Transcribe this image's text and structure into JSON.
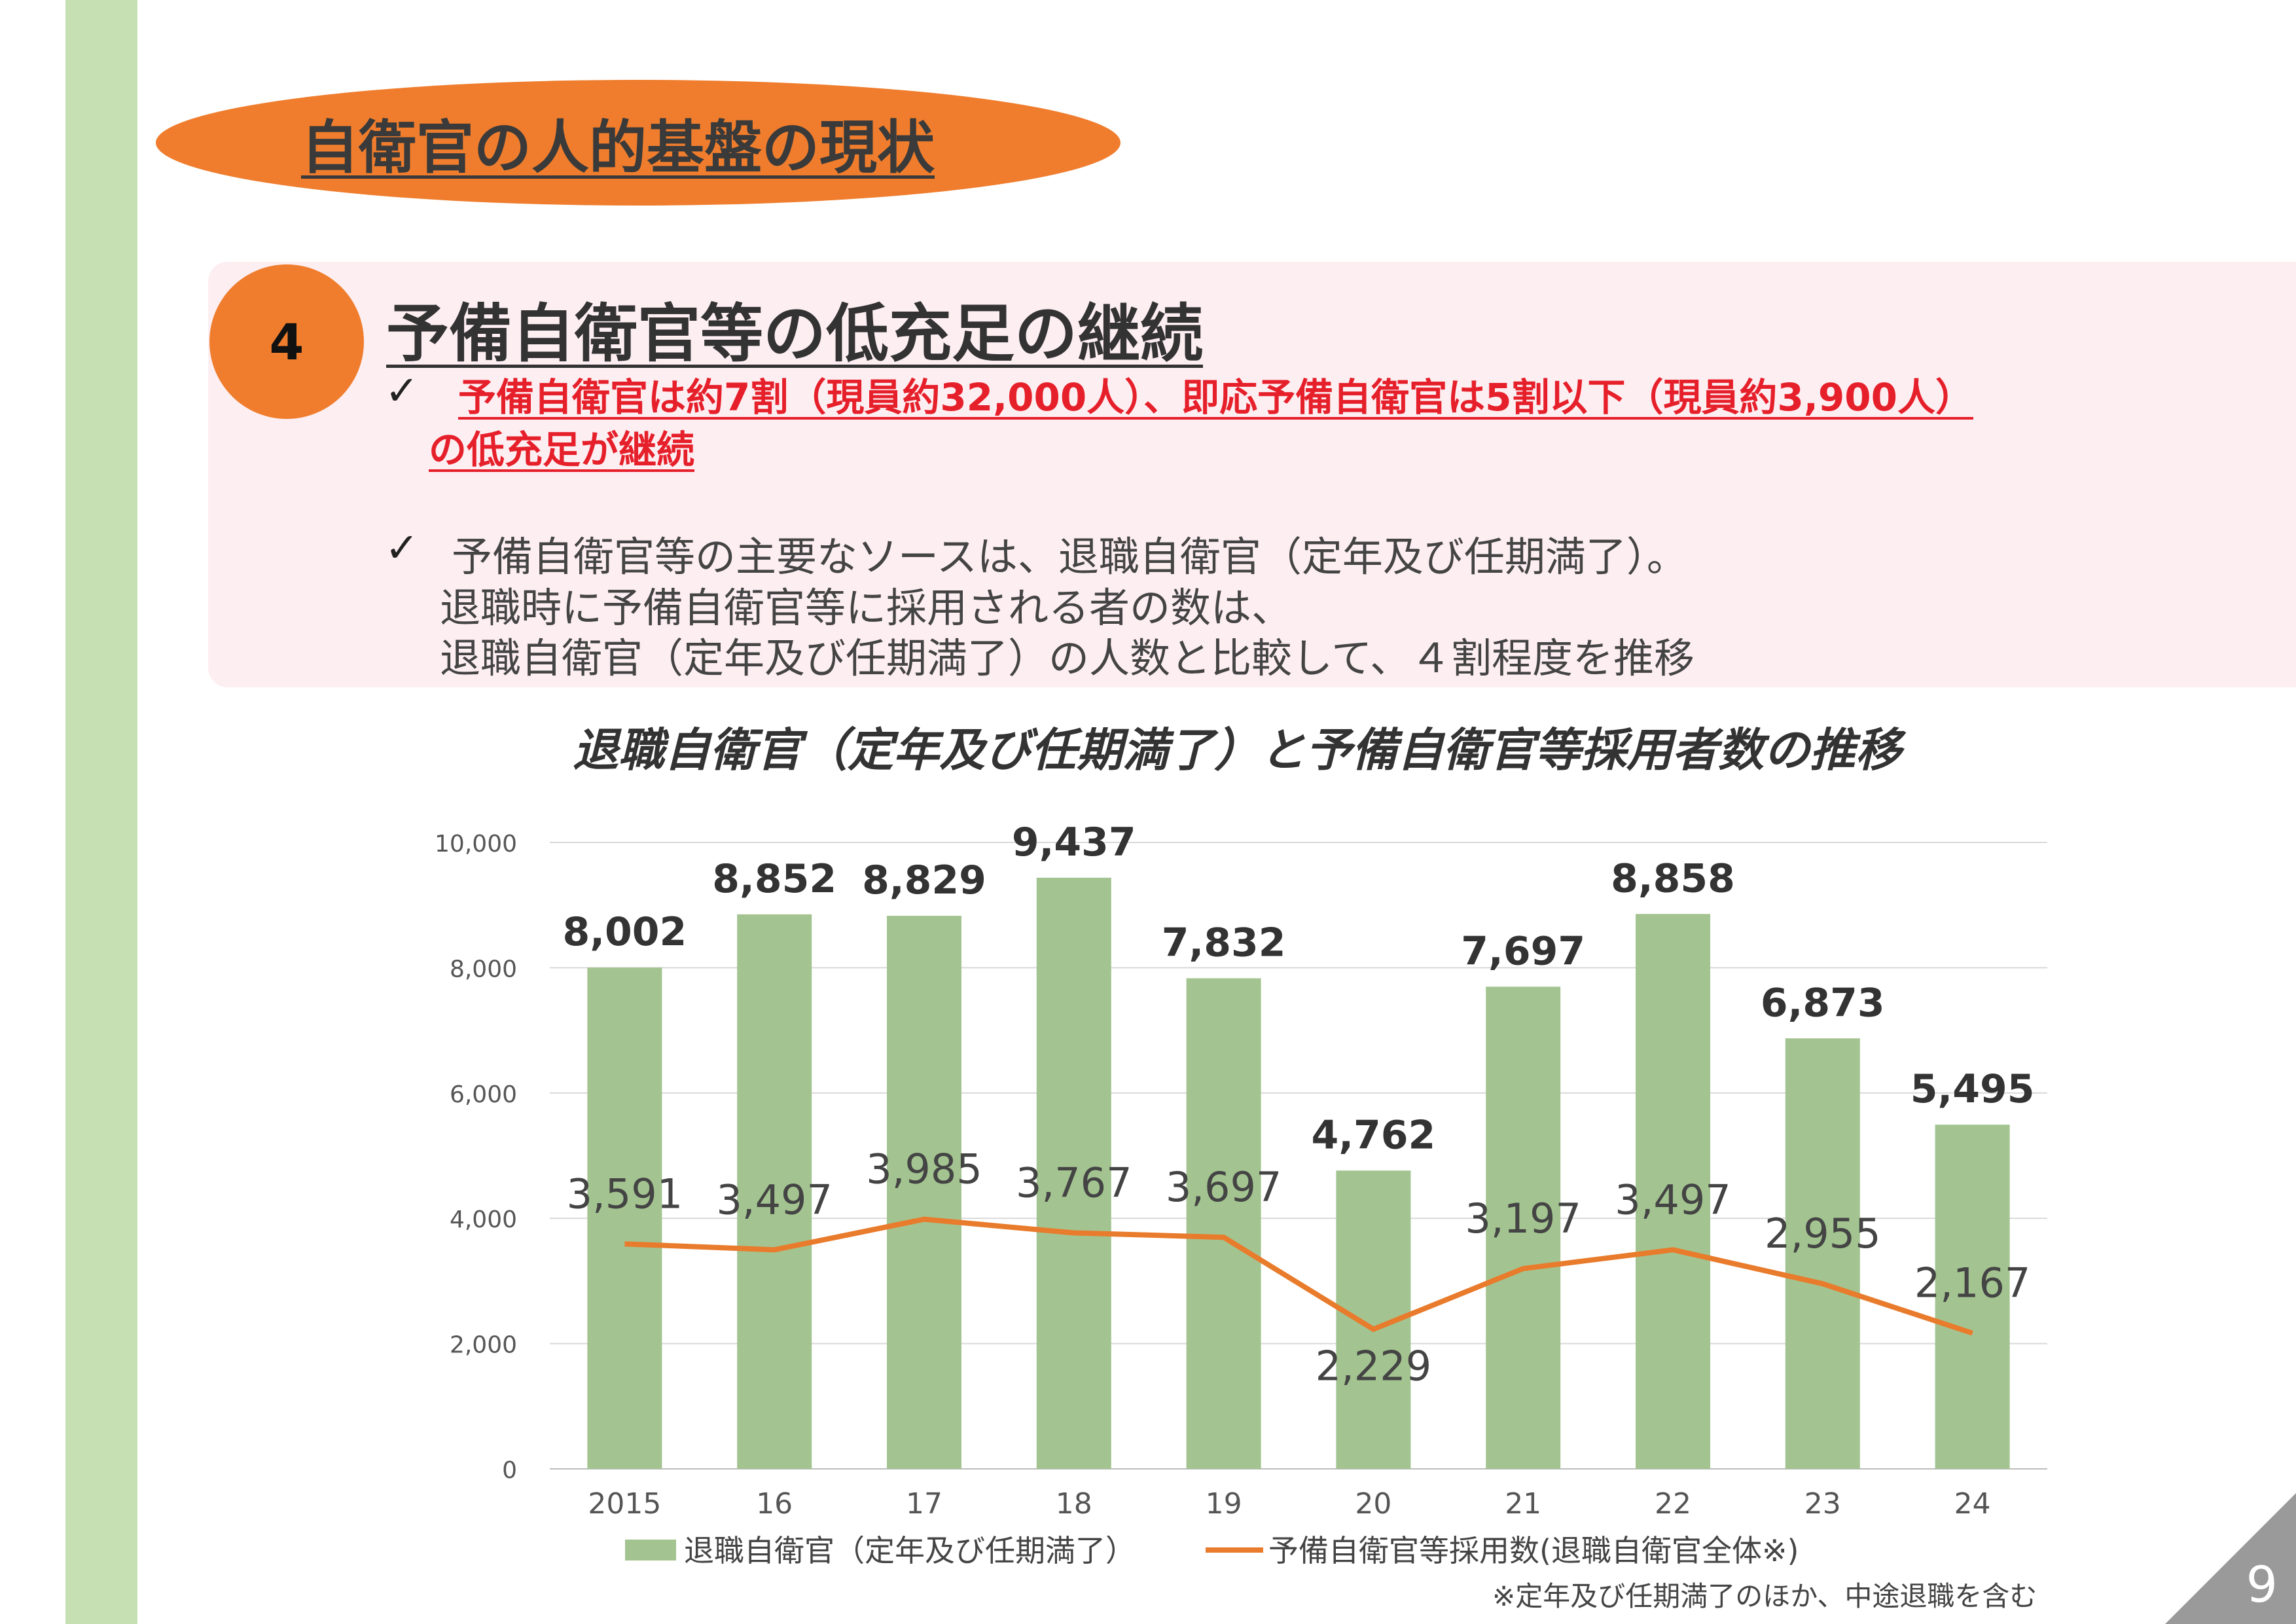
{
  "slide": {
    "title": "自衛官の人的基盤の現状",
    "section_number": "4",
    "heading": "予備自衛官等の低充足の継続",
    "checkmark": "✓",
    "red_bullet_line1": "予備自衛官は約7割（現員約32,000人）、即応予備自衛官は5割以下（現員約3,900人）",
    "red_bullet_line2": "の低充足が継続",
    "bullet2_line1": "予備自衛官等の主要なソースは、退職自衛官（定年及び任期満了）。",
    "bullet2_line2": "退職時に予備自衛官等に採用される者の数は、",
    "bullet2_line3": "退職自衛官（定年及び任期満了）の人数と比較して、４割程度を推移",
    "footnote": "※定年及び任期満了のほか、中途退職を含む",
    "page_number": "9"
  },
  "chart_data": {
    "type": "bar",
    "title": "退職自衛官（定年及び任期満了）と予備自衛官等採用者数の推移",
    "categories": [
      "2015",
      "16",
      "17",
      "18",
      "19",
      "20",
      "21",
      "22",
      "23",
      "24"
    ],
    "series": [
      {
        "name": "退職自衛官（定年及び任期満了）",
        "type": "bar",
        "color": "#a3c490",
        "values": [
          8002,
          8852,
          8829,
          9437,
          7832,
          4762,
          7697,
          8858,
          6873,
          5495
        ],
        "labels": [
          "8,002",
          "8,852",
          "8,829",
          "9,437",
          "7,832",
          "4,762",
          "7,697",
          "8,858",
          "6,873",
          "5,495"
        ]
      },
      {
        "name": "予備自衛官等採用数(退職自衛官全体※)",
        "type": "line",
        "color": "#e97b2c",
        "values": [
          3591,
          3497,
          3985,
          3767,
          3697,
          2229,
          3197,
          3497,
          2955,
          2167
        ],
        "labels": [
          "3,591",
          "3,497",
          "3,985",
          "3,767",
          "3,697",
          "2,229",
          "3,197",
          "3,497",
          "2,955",
          "2,167"
        ]
      }
    ],
    "ylim": [
      0,
      10000
    ],
    "yticks": [
      0,
      2000,
      4000,
      6000,
      8000,
      10000
    ],
    "ytick_labels": [
      "0",
      "2,000",
      "4,000",
      "6,000",
      "8,000",
      "10,000"
    ],
    "grid": true,
    "legend": "bottom"
  }
}
